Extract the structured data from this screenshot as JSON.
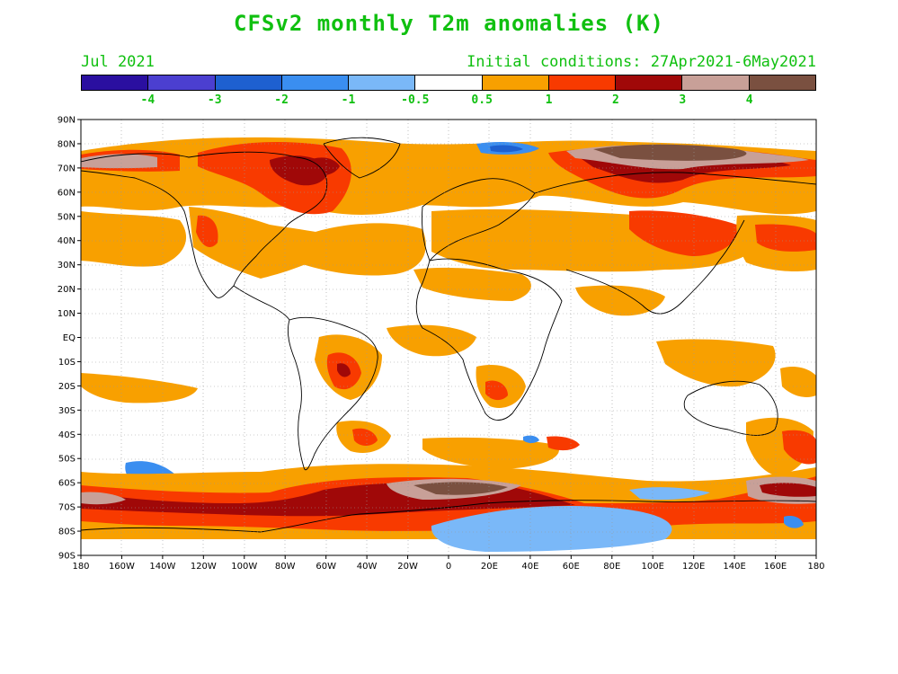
{
  "title": "CFSv2 monthly T2m anomalies (K)",
  "subtitle_left": "Jul 2021",
  "subtitle_right": "Initial conditions: 27Apr2021-6May2021",
  "colorbar": {
    "colors": [
      "#2a0fa0",
      "#4b3fd0",
      "#1e60d0",
      "#3a8ef0",
      "#7ab8f8",
      "#ffffff",
      "#f8a000",
      "#f83a00",
      "#a00808",
      "#c8a098",
      "#7a5040"
    ],
    "labels": [
      "-4",
      "-3",
      "-2",
      "-1",
      "-0.5",
      "0.5",
      "1",
      "2",
      "3",
      "4"
    ]
  },
  "lat_labels": [
    "90N",
    "80N",
    "70N",
    "60N",
    "50N",
    "40N",
    "30N",
    "20N",
    "10N",
    "EQ",
    "10S",
    "20S",
    "30S",
    "40S",
    "50S",
    "60S",
    "70S",
    "80S",
    "90S"
  ],
  "lon_labels": [
    "180",
    "160W",
    "140W",
    "120W",
    "100W",
    "80W",
    "60W",
    "40W",
    "20W",
    "0",
    "20E",
    "40E",
    "60E",
    "80E",
    "100E",
    "120E",
    "140E",
    "160E",
    "180"
  ],
  "colors": {
    "text": "#10c010",
    "coast": "#000000",
    "grid": "#999999"
  }
}
